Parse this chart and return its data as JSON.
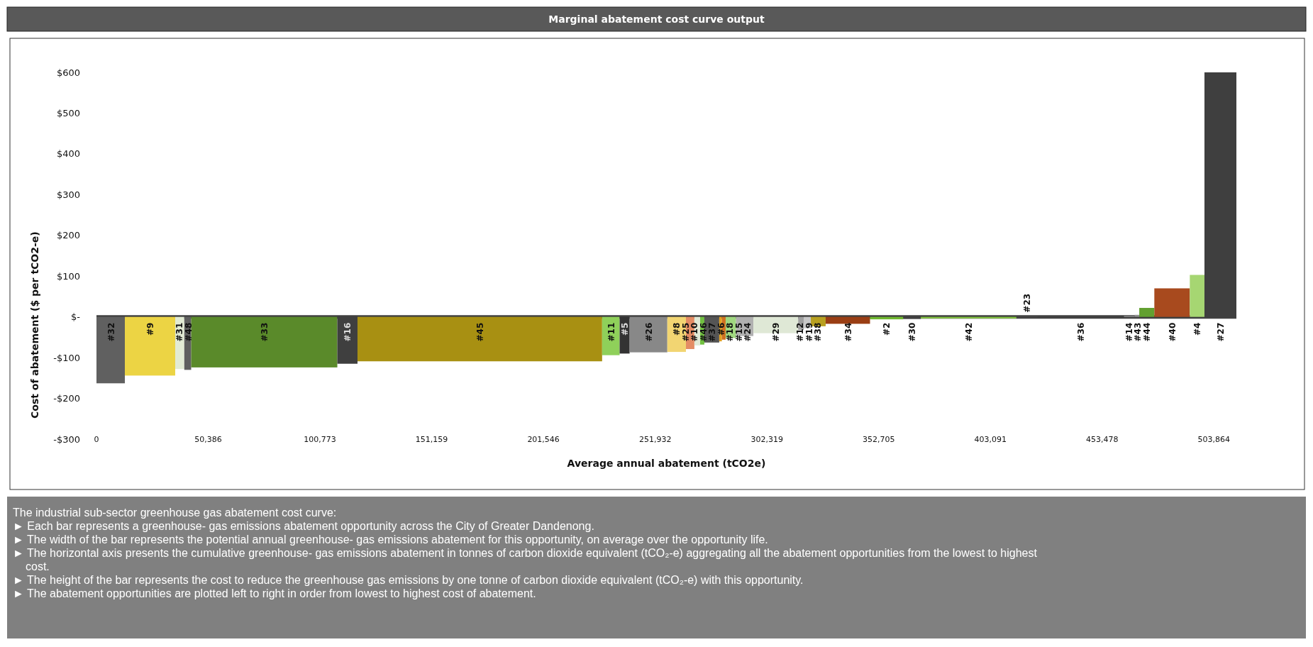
{
  "chart_data": {
    "type": "bar",
    "title": "Marginal abatement cost curve output",
    "xlabel": "Average annual abatement (tCO2e)",
    "ylabel": "Cost of abatement ($ per tCO2-e)",
    "x": [
      6400,
      24150,
      37550,
      41150,
      75650,
      113150,
      172850,
      231950,
      238150,
      248900,
      261600,
      267700,
      270900,
      273150,
      277450,
      281400,
      282850,
      286050,
      292300,
      306300,
      317650,
      320500,
      325450,
      338800,
      356300,
      367750,
      393250,
      419550,
      443800,
      465700,
      469150,
      473600,
      485000,
      496300,
      506800
    ],
    "values": [
      -163,
      -144,
      -128,
      -130,
      -124,
      -115,
      -109,
      -94,
      -90,
      -87,
      -86,
      -79,
      -70,
      -68,
      -63,
      -60,
      -56,
      -52,
      -47,
      -40,
      -32,
      -28,
      -23,
      -17,
      -6,
      -5,
      -4,
      0,
      null,
      2,
      5,
      22,
      70,
      103,
      600
    ],
    "colors": [
      "#606060",
      "#ecd444",
      "#e2ebd4",
      "#5f5f5f",
      "#5a8a2a",
      "#3f3f3f",
      "#a89012",
      "#8fd05a",
      "#333333",
      "#888888",
      "#f2d572",
      "#e48c64",
      "#e0e9d6",
      "#70c040",
      "#555555",
      "#e0a020",
      "#d07020",
      "#a0d880",
      "#b0b0b0",
      "#dfe8d6",
      "#a0a0a0",
      "#c8c8c8",
      "#b8a020",
      "#9a3e14",
      "#70b830",
      "#404040",
      "#80c040",
      "#505050",
      null,
      "#a0a0a0",
      "#909090",
      "#62a030",
      "#a84a1e",
      "#a6d672",
      "#3f3f3f"
    ],
    "xlim": [
      0,
      514000
    ],
    "xticks": [
      0,
      {
        "value": 50386,
        "label": "50,386"
      },
      {
        "value": 100773,
        "label": "100,773"
      },
      {
        "value": 151159,
        "label": "151,159"
      },
      {
        "value": 201546,
        "label": "201,546"
      },
      {
        "value": 251932,
        "label": "251,932"
      },
      {
        "value": 302319,
        "label": "302,319"
      },
      {
        "value": 352705,
        "label": "352,705"
      },
      {
        "value": 403091,
        "label": "403,091"
      },
      {
        "value": 453478,
        "label": "453,478"
      },
      {
        "value": 503864,
        "label": "503,864"
      }
    ],
    "ylim": [
      -300,
      600
    ],
    "yticks": [
      {
        "value": -300,
        "label": "-$300"
      },
      {
        "value": -200,
        "label": "-$200"
      },
      {
        "value": -100,
        "label": "-$100"
      },
      {
        "value": 0,
        "label": "$-"
      },
      {
        "value": 100,
        "label": "$100"
      },
      {
        "value": 200,
        "label": "$200"
      },
      {
        "value": 300,
        "label": "$300"
      },
      {
        "value": 400,
        "label": "$400"
      },
      {
        "value": 500,
        "label": "$500"
      },
      {
        "value": 600,
        "label": "$600"
      }
    ],
    "annotations": [
      "#32",
      "#9",
      "#31",
      "#48",
      "#33",
      "#16",
      "#45",
      "#11",
      "#5",
      "#26",
      "#8",
      "#25",
      "#10",
      "#46",
      "#37",
      "#6",
      "#18",
      "#15",
      "#24",
      "#29",
      "#12",
      "#19",
      "#38",
      "#34",
      "#2",
      "#30",
      "#42",
      "#23",
      "#36",
      "#14",
      "#43",
      "#44",
      "#40",
      "#4",
      "#27",
      "The industrial sub-sector greenhouse gas abatement cost curve:",
      "► Each bar represents a greenhouse- gas emissions abatement opportunity across the City of Greater Dandenong.",
      "► The width of the bar represents the potential annual greenhouse- gas emissions abatement for this opportunity, on average over the opportunity life.",
      "► The horizontal axis presents the cumulative greenhouse- gas emissions abatement in tonnes of carbon dioxide equivalent (tCO₂-e) aggregating all the abatement opportunities from the lowest to highest cost.",
      "► The height of the bar represents the cost to reduce the greenhouse gas emissions by one tonne of carbon dioxide equivalent (tCO₂-e) with this opportunity.",
      "► The abatement opportunities are plotted left to right in order from lowest to highest cost of abatement."
    ]
  }
}
